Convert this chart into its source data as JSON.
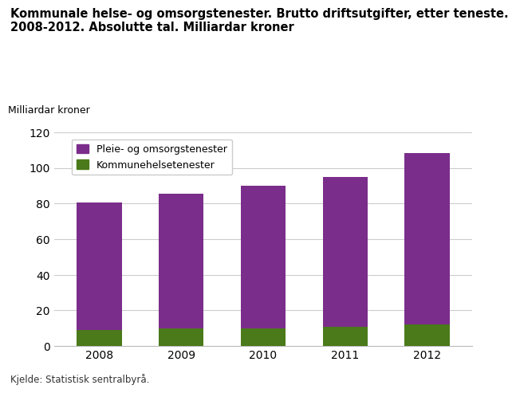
{
  "years": [
    "2008",
    "2009",
    "2010",
    "2011",
    "2012"
  ],
  "pleie_values": [
    71.5,
    75.5,
    80.0,
    84.0,
    96.5
  ],
  "kommune_values": [
    9.0,
    10.0,
    10.0,
    11.0,
    12.0
  ],
  "pleie_color": "#7B2D8B",
  "kommune_color": "#4A7A19",
  "title": "Kommunale helse- og omsorgstenester. Brutto driftsutgifter, etter teneste.\n2008-2012. Absolutte tal. Milliardar kroner",
  "ylabel": "Milliardar kroner",
  "ylim": [
    0,
    120
  ],
  "yticks": [
    0,
    20,
    40,
    60,
    80,
    100,
    120
  ],
  "legend_label_1": "Pleie- og omsorgstenester",
  "legend_label_2": "Kommunehelsetenester",
  "source_text": "Kjelde: Statistisk sentralbyrå.",
  "background_color": "#ffffff",
  "grid_color": "#cccccc",
  "bar_width": 0.55
}
